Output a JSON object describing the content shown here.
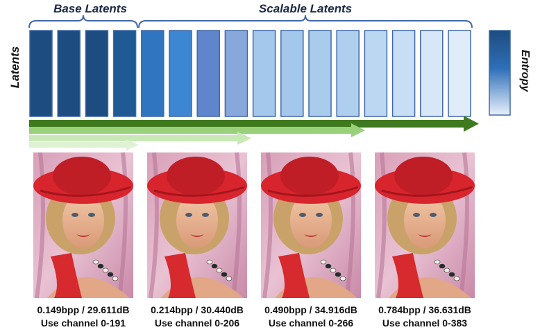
{
  "labels": {
    "base": "Base Latents",
    "scalable": "Scalable Latents",
    "latents": "Latents",
    "entropy": "Entropy"
  },
  "colors": {
    "base_block": "#1c4c80",
    "outline": "#4068a8",
    "arrow_dark": "#3f7a1e",
    "arrow_mid": "#99d17a",
    "arrow_light": "#c8e8b6",
    "arrow_lightest": "#dff2d4"
  },
  "blocks": {
    "colors": [
      "#1c4c80",
      "#1c4c80",
      "#1c4c80",
      "#1f5a94",
      "#2f75bf",
      "#3c86d2",
      "#5f86cc",
      "#88a8dc",
      "#a4c8ec",
      "#a4c8ec",
      "#a9cbec",
      "#afcfee",
      "#bcd7f2",
      "#c8def4",
      "#d8e7f8",
      "#e0ecfa"
    ],
    "base_count": 4
  },
  "entropy_bar": {
    "top_color": "#1c4c80",
    "bottom_color": "#e8f1fb"
  },
  "panels": [
    {
      "bpp_psnr": "0.149bpp / 29.611dB",
      "channels": "Use channel 0-191"
    },
    {
      "bpp_psnr": "0.214bpp / 30.440dB",
      "channels": "Use channel 0-206"
    },
    {
      "bpp_psnr": "0.490bpp / 34.916dB",
      "channels": "Use channel 0-266"
    },
    {
      "bpp_psnr": "0.784bpp / 36.631dB",
      "channels": "Use channel 0-383"
    }
  ]
}
